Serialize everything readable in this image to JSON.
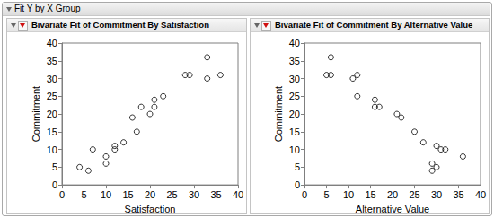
{
  "window": {
    "title": "Fit Y by X Group"
  },
  "chart_data": [
    {
      "type": "scatter",
      "title": "Bivariate Fit of Commitment By Satisfaction",
      "x_label": "Satisfaction",
      "y_label": "Commitment",
      "x": [
        4,
        6,
        7,
        10,
        10,
        12,
        12,
        14,
        16,
        17,
        18,
        20,
        21,
        21,
        23,
        28,
        29,
        33,
        33,
        36
      ],
      "values": [
        5,
        4,
        10,
        6,
        8,
        10,
        11,
        12,
        19,
        15,
        22,
        20,
        22,
        24,
        25,
        31,
        31,
        36,
        30,
        31
      ],
      "color": "#000000",
      "marker": "open_circle",
      "xlim": [
        0,
        40
      ],
      "ylim": [
        0,
        40
      ],
      "xticks": [
        0,
        5,
        10,
        15,
        20,
        25,
        30,
        35,
        40
      ],
      "yticks": [
        0,
        5,
        10,
        15,
        20,
        25,
        30,
        35,
        40
      ],
      "grid": false
    },
    {
      "type": "scatter",
      "title": "Bivariate Fit of Commitment By Alternative Value",
      "x_label": "Alternative Value",
      "y_label": "Commitment",
      "x": [
        5,
        6,
        6,
        11,
        12,
        12,
        16,
        16,
        17,
        21,
        22,
        25,
        27,
        29,
        29,
        30,
        30,
        31,
        32,
        36
      ],
      "values": [
        31,
        31,
        36,
        30,
        31,
        25,
        24,
        22,
        22,
        20,
        19,
        15,
        12,
        6,
        4,
        11,
        5,
        10,
        10,
        8
      ],
      "color": "#000000",
      "marker": "open_circle",
      "xlim": [
        0,
        40
      ],
      "ylim": [
        0,
        40
      ],
      "xticks": [
        0,
        5,
        10,
        15,
        20,
        25,
        30,
        35,
        40
      ],
      "yticks": [
        0,
        5,
        10,
        15,
        20,
        25,
        30,
        35,
        40
      ],
      "grid": false
    }
  ]
}
